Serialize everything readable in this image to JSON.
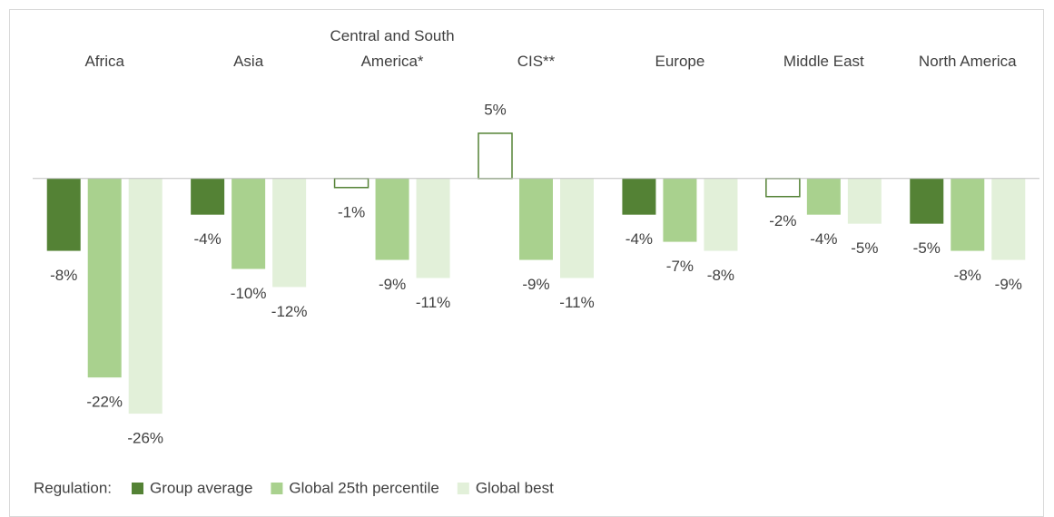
{
  "chart_data": {
    "type": "bar",
    "categories": [
      "Africa",
      "Asia",
      "Central and South America*",
      "CIS**",
      "Europe",
      "Middle East",
      "North America"
    ],
    "series": [
      {
        "name": "Group average",
        "color": "#548235",
        "values": [
          -8,
          -4,
          -1,
          5,
          -4,
          -2,
          -5
        ],
        "value_labels": [
          "-8%",
          "-4%",
          "-1%",
          "5%",
          "-4%",
          "-2%",
          "-5%"
        ],
        "hollow": [
          false,
          false,
          true,
          true,
          false,
          true,
          false
        ]
      },
      {
        "name": "Global 25th percentile",
        "color": "#a9d18e",
        "values": [
          -22,
          -10,
          -9,
          -9,
          -7,
          -4,
          -8
        ],
        "value_labels": [
          "-22%",
          "-10%",
          "-9%",
          "-9%",
          "-7%",
          "-4%",
          "-8%"
        ]
      },
      {
        "name": "Global best",
        "color": "#e2f0d9",
        "values": [
          -26,
          -12,
          -11,
          -11,
          -8,
          -5,
          -9
        ],
        "value_labels": [
          "-26%",
          "-12%",
          "-11%",
          "-11%",
          "-8%",
          "-5%",
          "-9%"
        ]
      }
    ],
    "legend_title": "Regulation:",
    "legend": "bottom-left",
    "ylim": [
      -28,
      7
    ]
  }
}
